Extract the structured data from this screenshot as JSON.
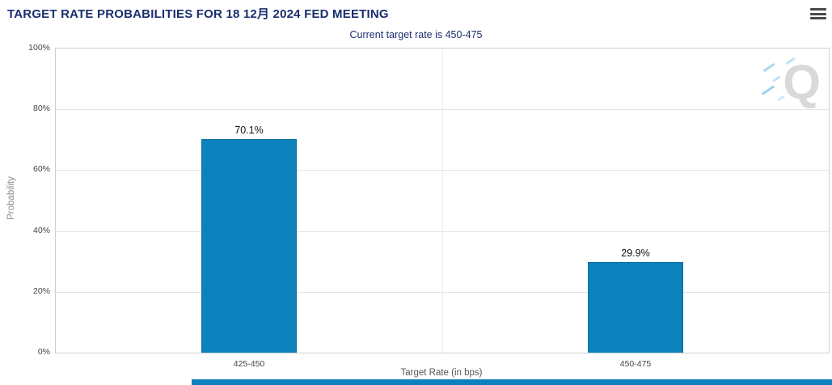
{
  "header": {
    "title": "TARGET RATE PROBABILITIES FOR 18 12月 2024 FED MEETING",
    "subtitle": "Current target rate is 450-475"
  },
  "menu": {
    "icon": "hamburger-menu-icon"
  },
  "watermark": {
    "letter": "Q"
  },
  "chart_data": {
    "type": "bar",
    "title": "TARGET RATE PROBABILITIES FOR 18 12月 2024 FED MEETING",
    "subtitle": "Current target rate is 450-475",
    "categories": [
      "425-450",
      "450-475"
    ],
    "values": [
      70.1,
      29.9
    ],
    "value_labels": [
      "70.1%",
      "29.9%"
    ],
    "xlabel": "Target Rate (in bps)",
    "ylabel": "Probability",
    "ylim": [
      0,
      100
    ],
    "yticks": [
      "0%",
      "20%",
      "40%",
      "60%",
      "80%",
      "100%"
    ],
    "grid": true,
    "legend": "none",
    "bar_color": "#0c82bd",
    "accent_navy": "#1b2e6e",
    "footer_bar_color": "#0b7fc0"
  }
}
